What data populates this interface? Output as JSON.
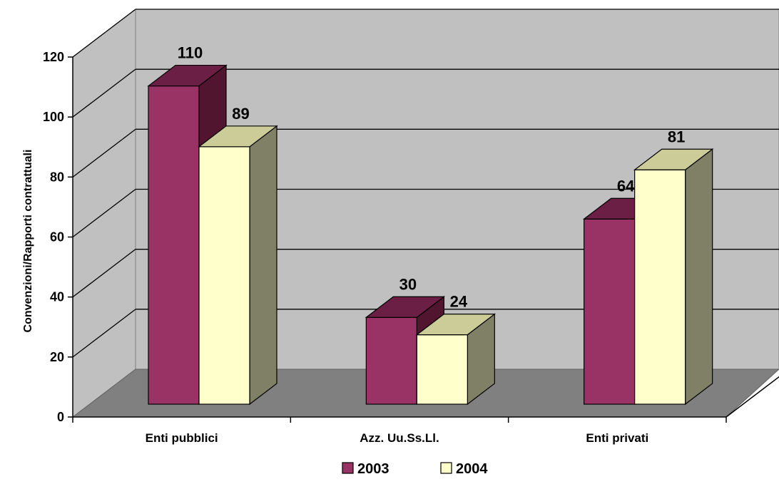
{
  "chart_data": {
    "type": "bar",
    "style": "3d-clustered-column",
    "categories": [
      "Enti pubblici",
      "Azz. Uu.Ss.Ll.",
      "Enti privati"
    ],
    "series": [
      {
        "name": "2003",
        "values": [
          110,
          30,
          64
        ],
        "color": "#993366",
        "top_color": "#6b1f45",
        "side_color": "#52152f"
      },
      {
        "name": "2004",
        "values": [
          89,
          24,
          81
        ],
        "color": "#ffffcc",
        "top_color": "#cccc99",
        "side_color": "#808066"
      }
    ],
    "ylabel": "Convenzioni/Rapporti contrattuali",
    "xlabel": "",
    "title": "",
    "ylim": [
      0,
      120
    ],
    "yticks": [
      0,
      20,
      40,
      60,
      80,
      100,
      120
    ],
    "grid": true,
    "legend_position": "bottom",
    "colors": {
      "wall": "#c0c0c0",
      "floor": "#808080",
      "gridline": "#000000"
    }
  }
}
